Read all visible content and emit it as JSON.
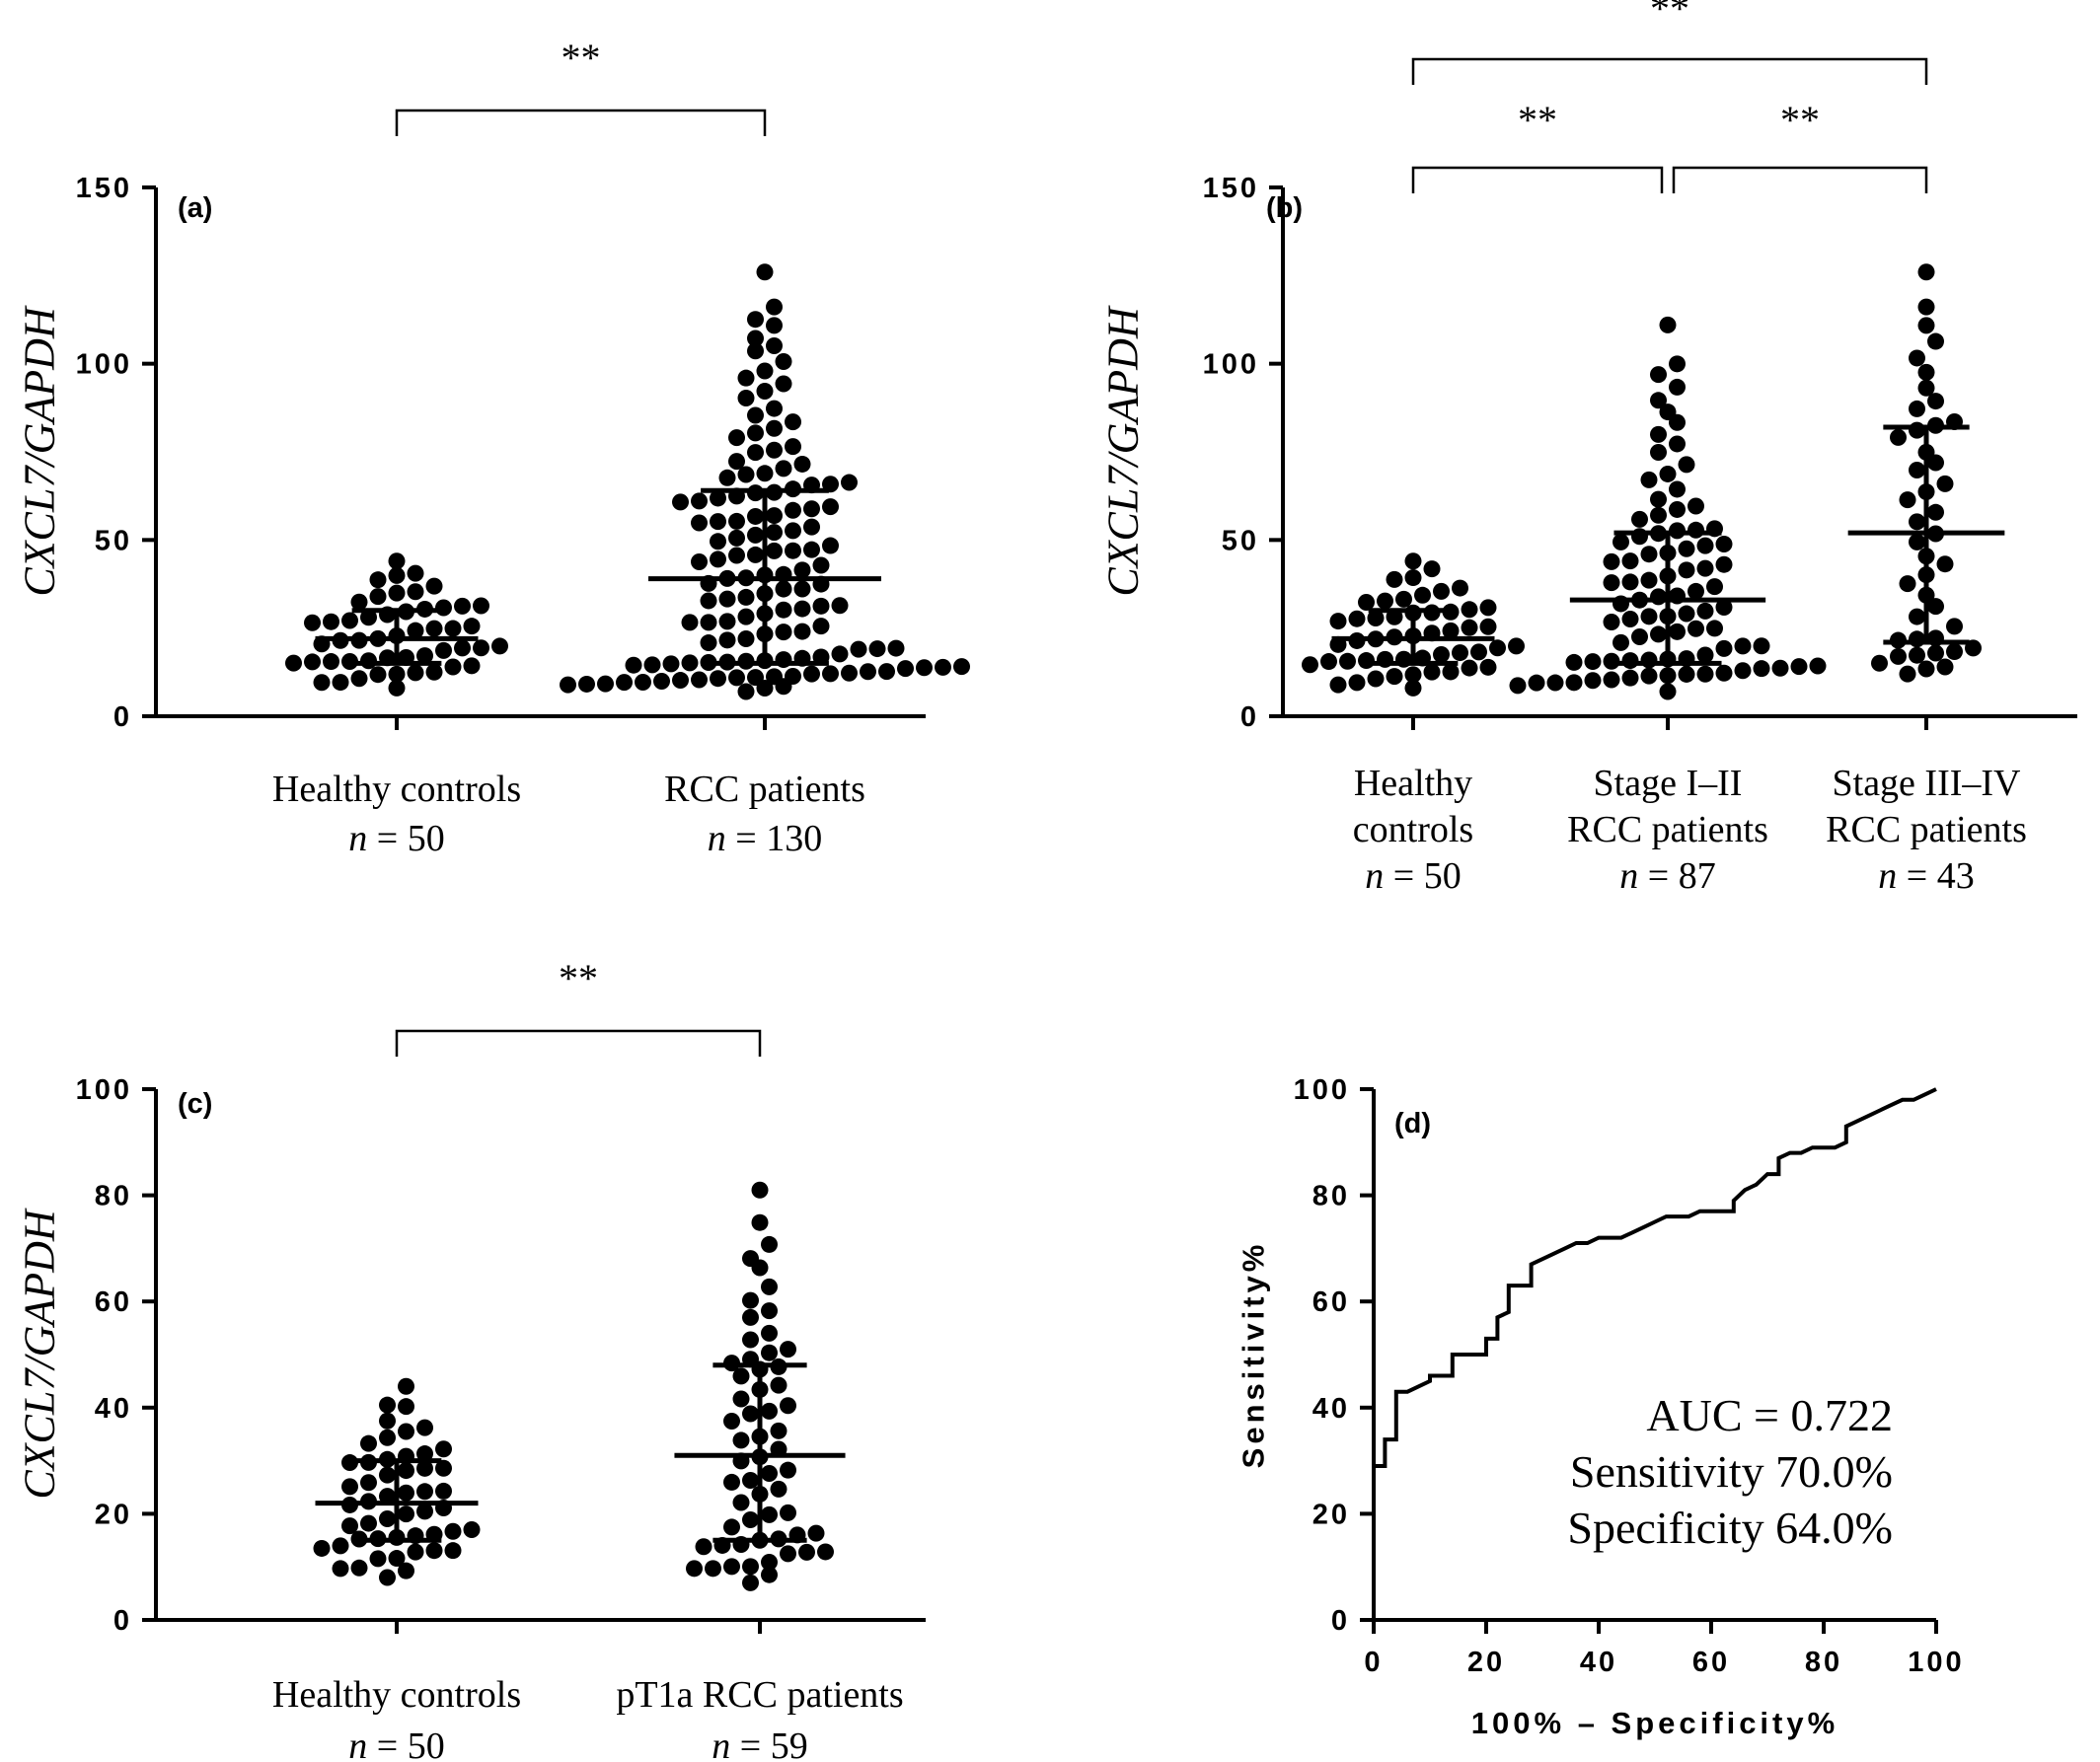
{
  "chart_data": [
    {
      "type": "scatter",
      "panel_label": "(a)",
      "ylabel": "CXCL7/GAPDH",
      "ylim": [
        0,
        150
      ],
      "yticks": [
        "0",
        "50",
        "100",
        "150"
      ],
      "categories": [
        {
          "lines": [
            "Healthy controls",
            "n = 50"
          ],
          "median": 22,
          "iqr": [
            15,
            30
          ],
          "n": 50,
          "max": 44,
          "min": 8
        },
        {
          "lines": [
            "RCC patients",
            "n = 130"
          ],
          "median": 39,
          "iqr": [
            15,
            64
          ],
          "n": 130,
          "max": 126,
          "min": 7
        }
      ],
      "significance": [
        {
          "from": 0,
          "to": 1,
          "label": "**"
        }
      ]
    },
    {
      "type": "scatter",
      "panel_label": "(b)",
      "ylabel": "CXCL7/GAPDH",
      "ylim": [
        0,
        150
      ],
      "yticks": [
        "0",
        "50",
        "100",
        "150"
      ],
      "categories": [
        {
          "lines": [
            "Healthy",
            "controls",
            "n = 50"
          ],
          "median": 22,
          "iqr": [
            15,
            30
          ],
          "n": 50,
          "max": 44,
          "min": 8
        },
        {
          "lines": [
            "Stage I–II",
            "RCC patients",
            "n = 87"
          ],
          "median": 33,
          "iqr": [
            15,
            52
          ],
          "n": 87,
          "max": 111,
          "min": 7
        },
        {
          "lines": [
            "Stage III–IV",
            "RCC patients",
            "n = 43"
          ],
          "median": 52,
          "iqr": [
            21,
            82
          ],
          "n": 43,
          "max": 126,
          "min": 12
        }
      ],
      "significance": [
        {
          "from": 0,
          "to": 1,
          "label": "**"
        },
        {
          "from": 1,
          "to": 2,
          "label": "**"
        },
        {
          "from": 0,
          "to": 2,
          "label": "**"
        }
      ]
    },
    {
      "type": "scatter",
      "panel_label": "(c)",
      "ylabel": "CXCL7/GAPDH",
      "ylim": [
        0,
        100
      ],
      "yticks": [
        "0",
        "20",
        "40",
        "60",
        "80",
        "100"
      ],
      "categories": [
        {
          "lines": [
            "Healthy controls",
            "n = 50"
          ],
          "median": 22,
          "iqr": [
            15,
            30
          ],
          "n": 50,
          "max": 44,
          "min": 8
        },
        {
          "lines": [
            "pT1a RCC patients",
            "n = 59"
          ],
          "median": 31,
          "iqr": [
            15,
            48
          ],
          "n": 59,
          "max": 81,
          "min": 7
        }
      ],
      "significance": [
        {
          "from": 0,
          "to": 1,
          "label": "**"
        }
      ]
    },
    {
      "type": "line",
      "panel_label": "(d)",
      "xlabel": "100% – Specificity%",
      "ylabel": "Sensitivity%",
      "xlim": [
        0,
        100
      ],
      "ylim": [
        0,
        100
      ],
      "xticks": [
        "0",
        "20",
        "40",
        "60",
        "80",
        "100"
      ],
      "yticks": [
        "0",
        "20",
        "40",
        "60",
        "80",
        "100"
      ],
      "annotations": [
        "AUC = 0.722",
        "Sensitivity 70.0%",
        "Specificity 64.0%"
      ],
      "x": [
        0,
        0,
        2,
        2,
        4,
        4,
        6,
        8,
        10,
        10,
        12,
        14,
        14,
        16,
        18,
        20,
        20,
        22,
        22,
        24,
        24,
        26,
        28,
        28,
        30,
        32,
        34,
        36,
        38,
        40,
        42,
        44,
        46,
        48,
        50,
        52,
        54,
        56,
        58,
        60,
        62,
        64,
        64,
        66,
        68,
        70,
        72,
        72,
        74,
        76,
        78,
        80,
        82,
        84,
        84,
        86,
        88,
        90,
        92,
        94,
        96,
        98,
        100
      ],
      "y": [
        0,
        29,
        29,
        34,
        34,
        43,
        43,
        44,
        45,
        46,
        46,
        46,
        50,
        50,
        50,
        50,
        53,
        53,
        57,
        58,
        63,
        63,
        63,
        67,
        68,
        69,
        70,
        71,
        71,
        72,
        72,
        72,
        73,
        74,
        75,
        76,
        76,
        76,
        77,
        77,
        77,
        77,
        79,
        81,
        82,
        84,
        84,
        87,
        88,
        88,
        89,
        89,
        89,
        90,
        93,
        94,
        95,
        96,
        97,
        98,
        98,
        99,
        100
      ]
    }
  ]
}
